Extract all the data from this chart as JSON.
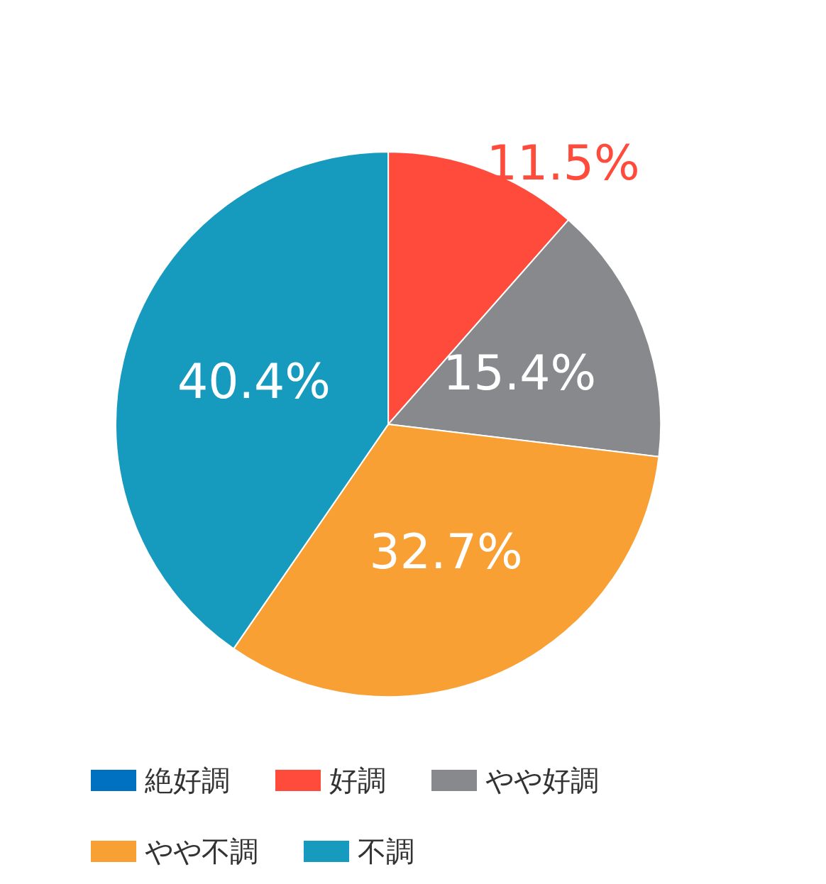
{
  "chart_data": {
    "type": "pie",
    "categories": [
      "絶好調",
      "好調",
      "やや好調",
      "やや不調",
      "不調"
    ],
    "values": [
      0,
      11.5,
      15.4,
      32.7,
      40.4
    ],
    "colors": [
      "#0070c0",
      "#ff4b3c",
      "#88898d",
      "#f9a034",
      "#169abd"
    ],
    "value_labels": [
      null,
      "11.5%",
      "15.4%",
      "32.7%",
      "40.4%"
    ],
    "legend": "bottom"
  }
}
